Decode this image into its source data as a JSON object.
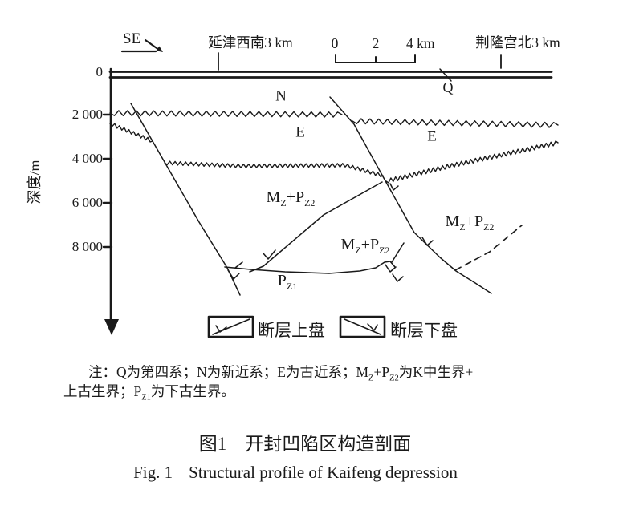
{
  "figure": {
    "orientation": "SE",
    "location_left": "延津西南3 km",
    "location_right": "荆隆宫北3 km",
    "scale_bar": {
      "tick0": "0",
      "tick1": "2",
      "tick2": "4 km"
    },
    "depth_axis": {
      "title": "深度/m",
      "ticks": [
        "0",
        "2 000",
        "4 000",
        "6 000",
        "8 000"
      ]
    },
    "strata_labels": {
      "q": "Q",
      "n": "N",
      "e_left": "E",
      "e_right": "E",
      "mzpz2": {
        "m": "M",
        "z_sub": "Z",
        "plus_p": "+P",
        "z2_sub": "Z2"
      },
      "pz1": {
        "p": "P",
        "z1_sub": "Z1"
      }
    },
    "legend": {
      "hanging_wall": "断层上盘",
      "footwall": "断层下盘"
    }
  },
  "note": {
    "line1": {
      "seg1": "注：Q为第四系；N为新近系；E为古近系；M",
      "sub1": "Z",
      "seg2": "+P",
      "sub2": "Z2",
      "seg3": "为K中生界+"
    },
    "line2": {
      "seg1": "上古生界；P",
      "sub1": "Z1",
      "seg2": "为下古生界。"
    }
  },
  "caption": {
    "zh": "图1　开封凹陷区构造剖面",
    "en_label": "Fig. 1",
    "en_text": "Structural profile of Kaifeng depression"
  },
  "colors": {
    "ink": "#1a1a1a",
    "background": "#ffffff"
  }
}
